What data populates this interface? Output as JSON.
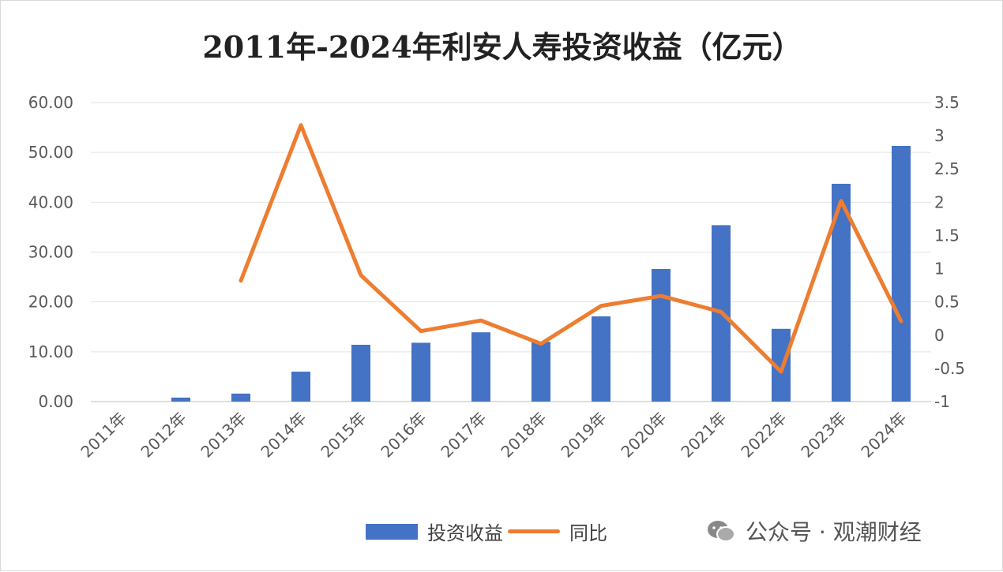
{
  "chart_data": {
    "type": "bar+line",
    "title": "2011年-2024年利安人寿投资收益（亿元）",
    "categories": [
      "2011年",
      "2012年",
      "2013年",
      "2014年",
      "2015年",
      "2016年",
      "2017年",
      "2018年",
      "2019年",
      "2020年",
      "2021年",
      "2022年",
      "2023年",
      "2024年"
    ],
    "series": [
      {
        "name": "投资收益",
        "type": "bar",
        "axis": "left",
        "color": "#4472c4",
        "values": [
          0,
          0.8,
          1.6,
          6.0,
          11.4,
          11.8,
          13.9,
          12.0,
          17.1,
          26.6,
          35.4,
          14.6,
          43.7,
          51.3
        ]
      },
      {
        "name": "同比",
        "type": "line",
        "axis": "right",
        "color": "#ed7d31",
        "values": [
          null,
          null,
          0.82,
          3.16,
          0.9,
          0.06,
          0.22,
          -0.13,
          0.44,
          0.59,
          0.35,
          -0.55,
          2.02,
          0.21
        ]
      }
    ],
    "left_axis": {
      "min": 0,
      "max": 60,
      "ticks": [
        "0.00",
        "10.00",
        "20.00",
        "30.00",
        "40.00",
        "50.00",
        "60.00"
      ]
    },
    "right_axis": {
      "min": -1,
      "max": 3.5,
      "ticks": [
        "-1",
        "-0.5",
        "0",
        "0.5",
        "1",
        "1.5",
        "2",
        "2.5",
        "3",
        "3.5"
      ]
    },
    "grid": true,
    "legend": "bottom"
  },
  "legend": {
    "bar": "投资收益",
    "line": "同比"
  },
  "watermark": "公众号 · 观潮财经"
}
